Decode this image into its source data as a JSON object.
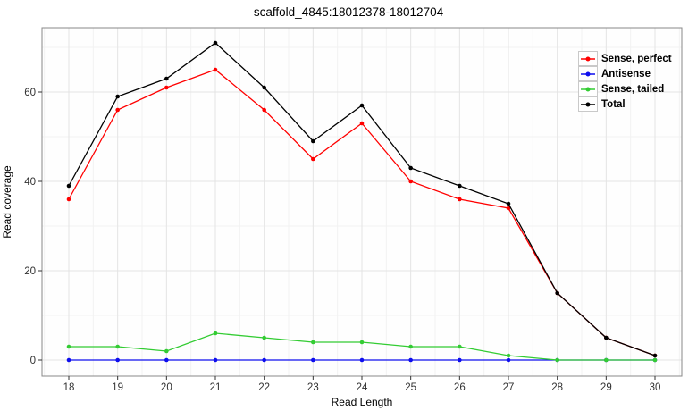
{
  "title": "scaffold_4845:18012378-18012704",
  "axes": {
    "xlabel": "Read Length",
    "ylabel": "Read coverage",
    "xticks": [
      18,
      19,
      20,
      21,
      22,
      23,
      24,
      25,
      26,
      27,
      28,
      29,
      30
    ],
    "yticks": [
      0,
      20,
      40,
      60
    ]
  },
  "legend": {
    "entries": [
      "Sense, perfect",
      "Antisense",
      "Sense, tailed",
      "Total"
    ]
  },
  "chart_data": {
    "type": "line",
    "title": "scaffold_4845:18012378-18012704",
    "xlabel": "Read Length",
    "ylabel": "Read coverage",
    "x": [
      18,
      19,
      20,
      21,
      22,
      23,
      24,
      25,
      26,
      27,
      28,
      29,
      30
    ],
    "series": [
      {
        "name": "Sense, perfect",
        "color": "#ff0000",
        "values": [
          36,
          56,
          61,
          65,
          56,
          45,
          53,
          40,
          36,
          34,
          15,
          5,
          1
        ]
      },
      {
        "name": "Antisense",
        "color": "#0e0eee",
        "values": [
          0,
          0,
          0,
          0,
          0,
          0,
          0,
          0,
          0,
          0,
          0,
          0,
          0
        ]
      },
      {
        "name": "Sense, tailed",
        "color": "#33cc33",
        "values": [
          3,
          3,
          2,
          6,
          5,
          4,
          4,
          3,
          3,
          1,
          0,
          0,
          0
        ]
      },
      {
        "name": "Total",
        "color": "#000000",
        "values": [
          39,
          59,
          63,
          71,
          61,
          49,
          57,
          43,
          39,
          35,
          15,
          5,
          1
        ]
      }
    ],
    "xlim": [
      17.45,
      30.55
    ],
    "ylim": [
      -3.6,
      74.4
    ],
    "yticks": [
      0,
      20,
      40,
      60
    ],
    "minor_yticks": [
      10,
      30,
      50,
      70
    ],
    "grid": true,
    "legend_position": "top-right",
    "marker": "circle"
  }
}
